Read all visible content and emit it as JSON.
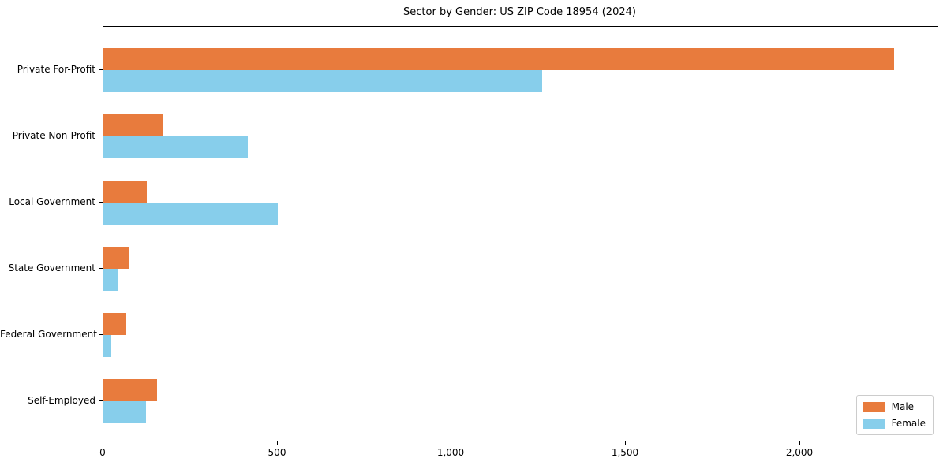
{
  "chart_data": {
    "type": "bar",
    "orientation": "horizontal",
    "title": "Sector by Gender: US ZIP Code 18954 (2024)",
    "categories": [
      "Private For-Profit",
      "Private Non-Profit",
      "Local Government",
      "State Government",
      "Federal Government",
      "Self-Employed"
    ],
    "series": [
      {
        "name": "Male",
        "color": "#E87B3D",
        "values": [
          2270,
          170,
          125,
          72,
          65,
          155
        ]
      },
      {
        "name": "Female",
        "color": "#87CEEB",
        "values": [
          1260,
          415,
          500,
          42,
          23,
          122
        ]
      }
    ],
    "xlabel": "",
    "ylabel": "",
    "xlim": [
      0,
      2395
    ],
    "x_ticks": [
      0,
      500,
      1000,
      1500,
      2000
    ],
    "x_tick_labels": [
      "0",
      "500",
      "1,000",
      "1,500",
      "2,000"
    ],
    "grid": false,
    "legend_position": "lower right",
    "colors": {
      "spine": "#000000",
      "text": "#000000",
      "background": "#ffffff",
      "legend_border": "#cccccc"
    }
  }
}
